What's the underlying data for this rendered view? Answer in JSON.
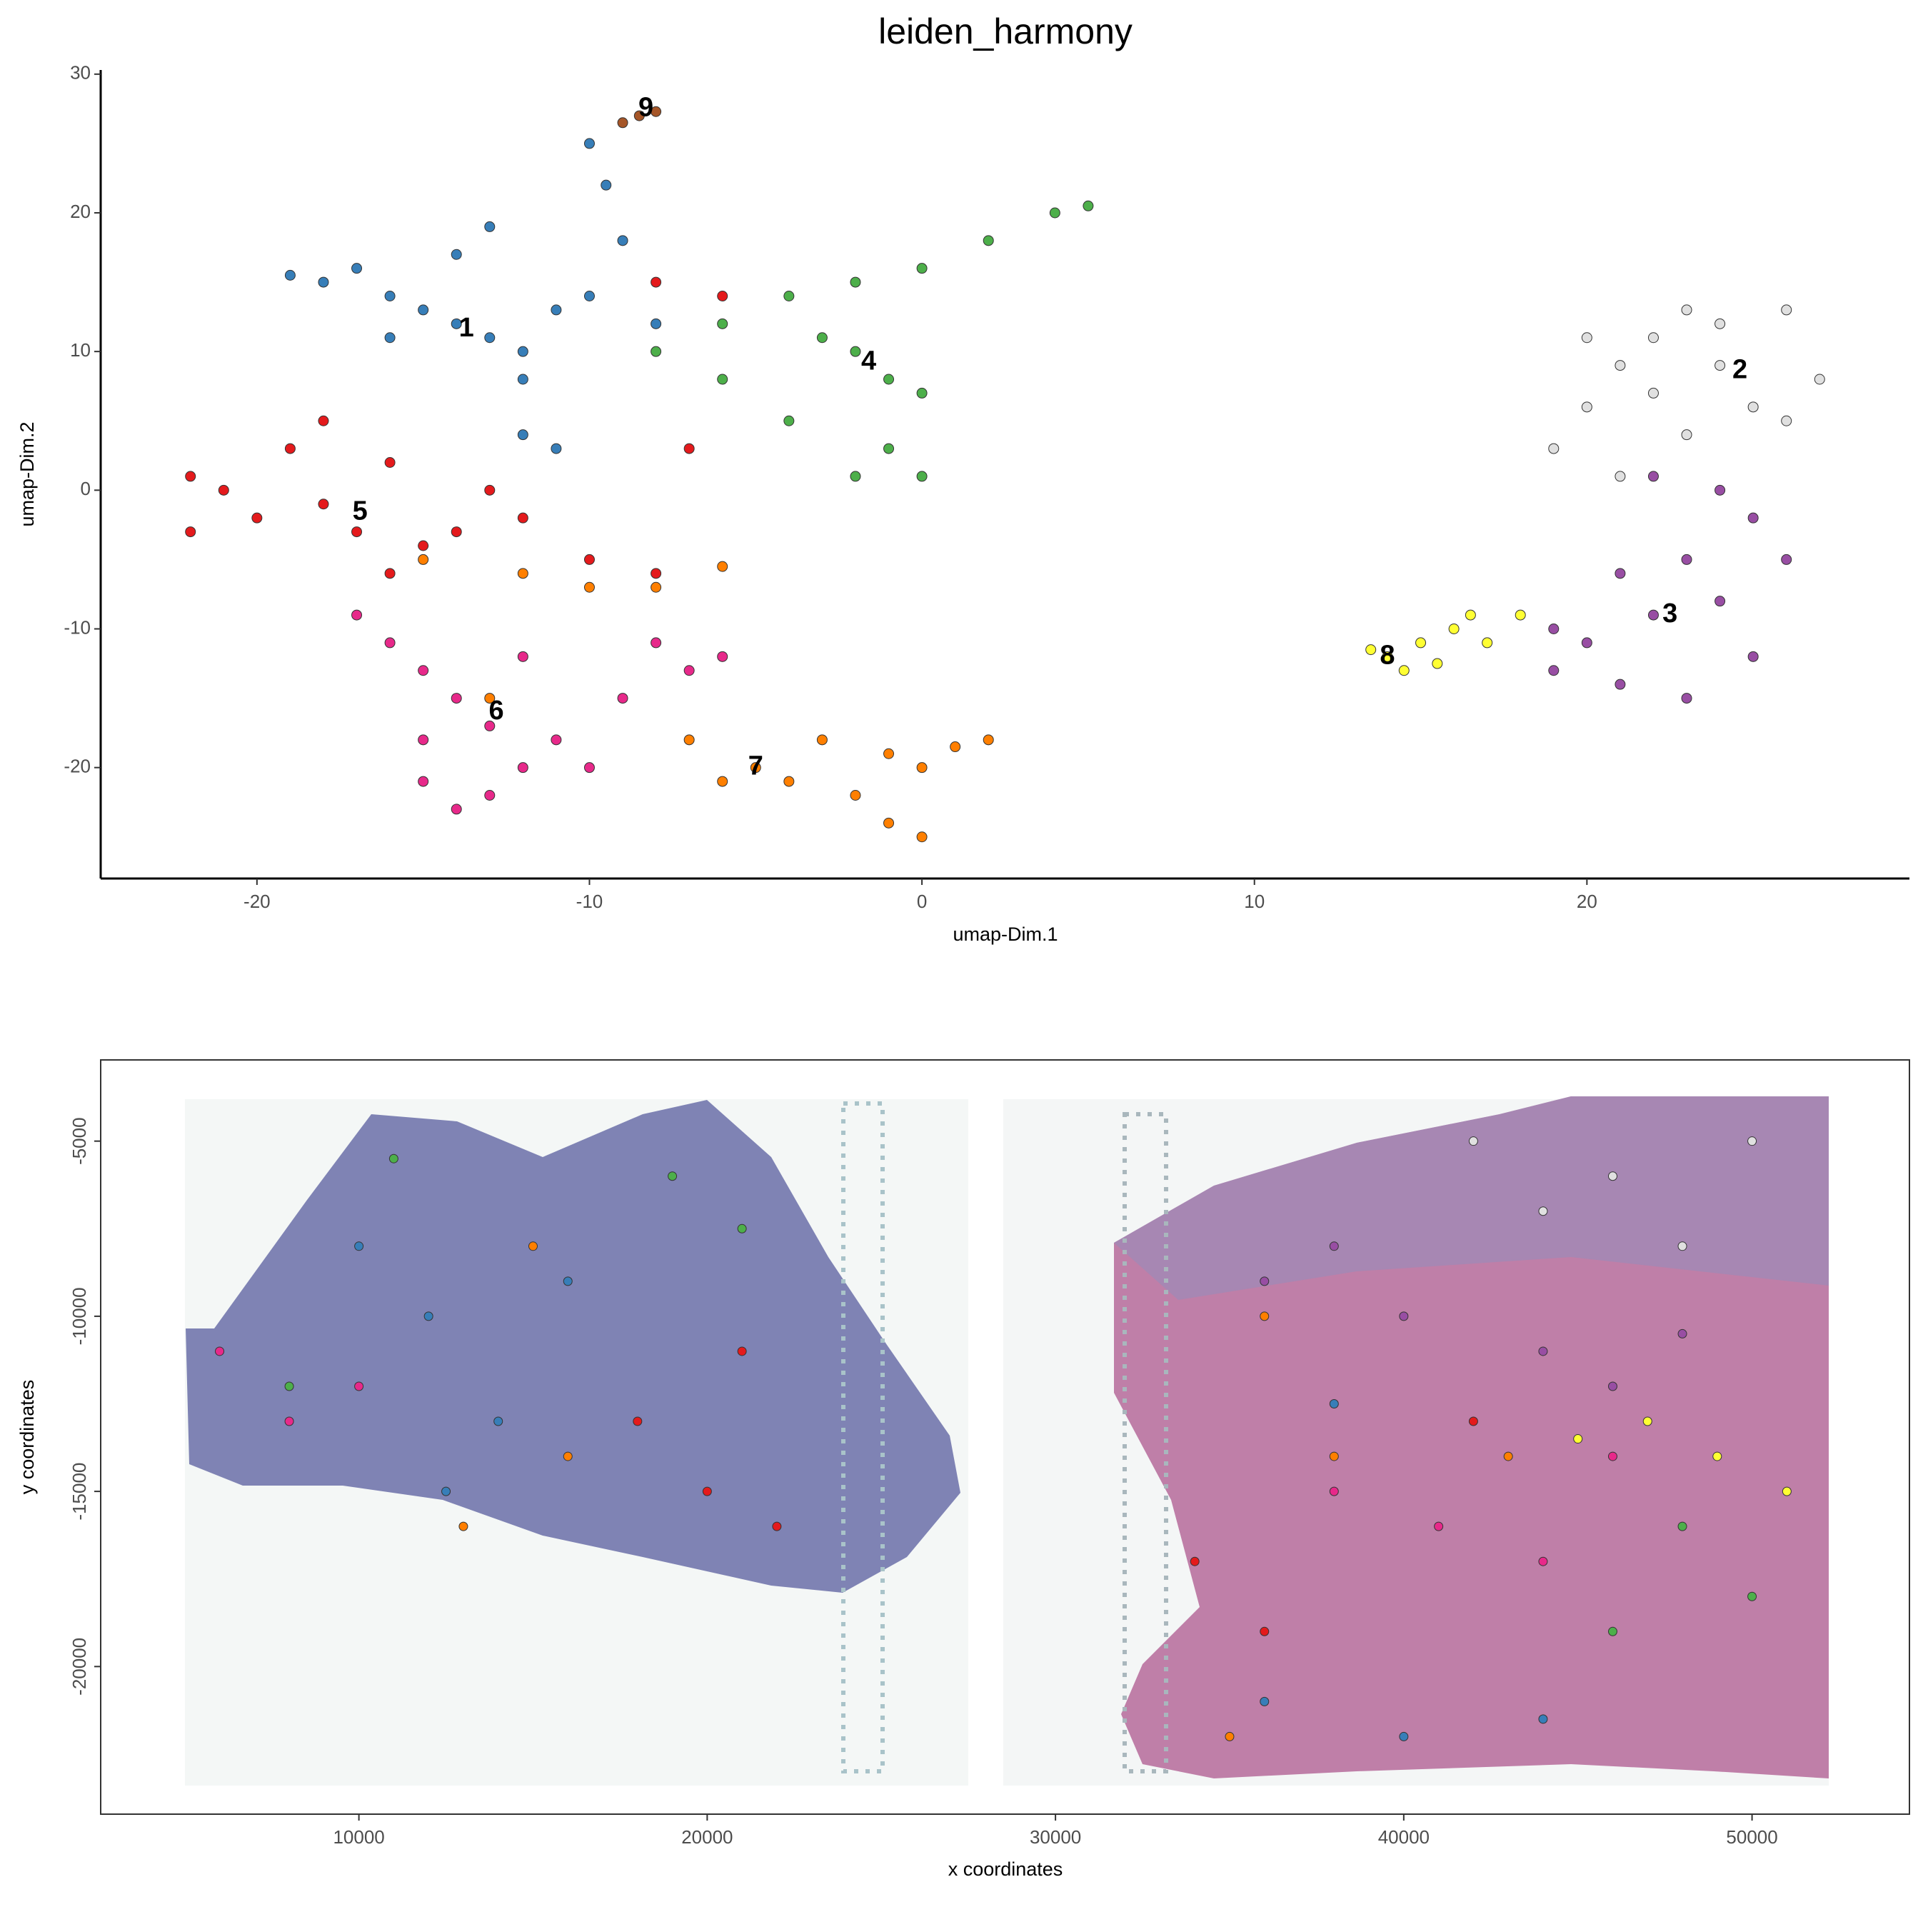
{
  "chart_data": [
    {
      "type": "scatter",
      "title": "leiden_harmony",
      "x_label": "umap-Dim.1",
      "y_label": "umap-Dim.2",
      "xlim": [
        -24.7,
        29.7
      ],
      "ylim": [
        -28,
        30.3
      ],
      "xticks": [
        -20,
        -10,
        0,
        10,
        20
      ],
      "yticks": [
        -20,
        -10,
        0,
        10,
        20,
        30
      ],
      "grid": false,
      "series": [
        {
          "name": "1",
          "color": "#377eb8",
          "label_pos": [
            -13.7,
            11.6
          ],
          "x": [
            -19,
            -18,
            -17,
            -16,
            -15,
            -14,
            -13,
            -12,
            -11,
            -10,
            -9,
            -9.5,
            -10,
            -12,
            -11,
            -14,
            -13,
            -16,
            -12,
            -8
          ],
          "y": [
            15.5,
            15,
            16,
            14,
            13,
            12,
            11,
            10,
            13,
            14,
            18,
            22,
            25,
            4,
            3,
            17,
            19,
            11,
            8,
            12
          ]
        },
        {
          "name": "2",
          "color": "#e0e0e0",
          "label_pos": [
            24.6,
            8.6
          ],
          "x": [
            19,
            20,
            21,
            22,
            24,
            26,
            27,
            25,
            23,
            21,
            22,
            24,
            26,
            20,
            23
          ],
          "y": [
            3,
            6,
            9,
            11,
            12,
            13,
            8,
            6,
            4,
            1,
            7,
            9,
            5,
            11,
            13
          ]
        },
        {
          "name": "3",
          "color": "#984ea3",
          "label_pos": [
            22.5,
            -9
          ],
          "x": [
            22,
            24,
            25,
            26,
            24,
            25,
            23,
            21,
            19,
            20,
            22,
            23,
            21,
            19
          ],
          "y": [
            1,
            0,
            -2,
            -5,
            -8,
            -12,
            -15,
            -14,
            -13,
            -11,
            -9,
            -5,
            -6,
            -10
          ]
        },
        {
          "name": "4",
          "color": "#4daf4a",
          "label_pos": [
            -1.6,
            9.2
          ],
          "x": [
            -8,
            -6,
            -4,
            -2,
            0,
            2,
            4,
            5,
            -2,
            -1,
            0,
            -1,
            -2,
            0,
            -4,
            -3,
            -6
          ],
          "y": [
            10,
            12,
            14,
            15,
            16,
            18,
            20,
            20.5,
            10,
            8,
            7,
            3,
            1,
            1,
            5,
            11,
            8
          ]
        },
        {
          "name": "5",
          "color": "#e41a1c",
          "label_pos": [
            -16.9,
            -1.6
          ],
          "x": [
            -22,
            -22,
            -21,
            -20,
            -19,
            -18,
            -17,
            -16,
            -15,
            -14,
            -13,
            -12,
            -10,
            -8,
            -7,
            -6,
            -8,
            -18,
            -16
          ],
          "y": [
            1,
            -3,
            0,
            -2,
            3,
            -1,
            -3,
            2,
            -4,
            -3,
            0,
            -2,
            -5,
            -6,
            3,
            14,
            15,
            5,
            -6
          ]
        },
        {
          "name": "6",
          "color": "#e7298a",
          "label_pos": [
            -12.8,
            -16
          ],
          "x": [
            -17,
            -16,
            -15,
            -14,
            -15,
            -15,
            -14,
            -13,
            -12,
            -13,
            -11,
            -9,
            -8,
            -7,
            -6,
            -10,
            -12
          ],
          "y": [
            -9,
            -11,
            -13,
            -15,
            -18,
            -21,
            -23,
            -22,
            -20,
            -17,
            -18,
            -15,
            -11,
            -13,
            -12,
            -20,
            -12
          ]
        },
        {
          "name": "7",
          "color": "#ff7f00",
          "label_pos": [
            -5,
            -20
          ],
          "x": [
            -15,
            -12,
            -10,
            -8,
            -6,
            -7,
            -5,
            -4,
            -2,
            -1,
            0,
            1,
            2,
            -1,
            0,
            -3,
            -6,
            -13
          ],
          "y": [
            -5,
            -6,
            -7,
            -7,
            -5.5,
            -18,
            -20,
            -21,
            -22,
            -19,
            -20,
            -18.5,
            -18,
            -24,
            -25,
            -18,
            -21,
            -15
          ]
        },
        {
          "name": "8",
          "color": "#ffff33",
          "label_pos": [
            14,
            -12
          ],
          "x": [
            13.5,
            14,
            14.5,
            15,
            16,
            16.5,
            17,
            18,
            15.5
          ],
          "y": [
            -11.5,
            -12,
            -13,
            -11,
            -10,
            -9,
            -11,
            -9,
            -12.5
          ]
        },
        {
          "name": "9",
          "color": "#a65628",
          "label_pos": [
            -8.3,
            27.5
          ],
          "x": [
            -9,
            -8.5,
            -8
          ],
          "y": [
            26.5,
            27,
            27.3
          ]
        }
      ]
    },
    {
      "type": "scatter",
      "x_label": "x coordinates",
      "y_label": "y coordinates",
      "xlim": [
        2586,
        54519
      ],
      "ylim": [
        -24214,
        -2682
      ],
      "xticks": [
        10000,
        20000,
        30000,
        40000,
        50000
      ],
      "yticks": [
        -5000,
        -10000,
        -15000,
        -20000
      ],
      "grid": false,
      "series": [
        {
          "color": "#377eb8",
          "x": [
            10000,
            12000,
            14000,
            16000,
            12500,
            36000,
            40000,
            44000,
            38000
          ],
          "y": [
            -8000,
            -10000,
            -13000,
            -9000,
            -15000,
            -21000,
            -22000,
            -21500,
            -12500
          ]
        },
        {
          "color": "#e0e0e0",
          "x": [
            42000,
            46000,
            50000,
            48000,
            44000
          ],
          "y": [
            -5000,
            -6000,
            -5000,
            -8000,
            -7000
          ]
        },
        {
          "color": "#984ea3",
          "x": [
            36000,
            40000,
            44000,
            48000,
            38000,
            46000
          ],
          "y": [
            -9000,
            -10000,
            -11000,
            -10500,
            -8000,
            -12000
          ]
        },
        {
          "color": "#4daf4a",
          "x": [
            11000,
            19000,
            21000,
            8000,
            48000,
            50000,
            46000
          ],
          "y": [
            -5500,
            -6000,
            -7500,
            -12000,
            -16000,
            -18000,
            -19000
          ]
        },
        {
          "color": "#e41a1c",
          "x": [
            18000,
            20000,
            22000,
            21000,
            34000,
            36000,
            42000
          ],
          "y": [
            -13000,
            -15000,
            -16000,
            -11000,
            -17000,
            -19000,
            -13000
          ]
        },
        {
          "color": "#e7298a",
          "x": [
            6000,
            8000,
            10000,
            38000,
            41000,
            44000,
            46000
          ],
          "y": [
            -11000,
            -13000,
            -12000,
            -15000,
            -16000,
            -17000,
            -14000
          ]
        },
        {
          "color": "#ff7f00",
          "x": [
            15000,
            16000,
            13000,
            36000,
            38000,
            43000,
            35000
          ],
          "y": [
            -8000,
            -14000,
            -16000,
            -10000,
            -14000,
            -14000,
            -22000
          ]
        },
        {
          "color": "#ffff33",
          "x": [
            47000,
            49000,
            51000,
            45000
          ],
          "y": [
            -13000,
            -14000,
            -15000,
            -13500
          ]
        }
      ]
    }
  ]
}
